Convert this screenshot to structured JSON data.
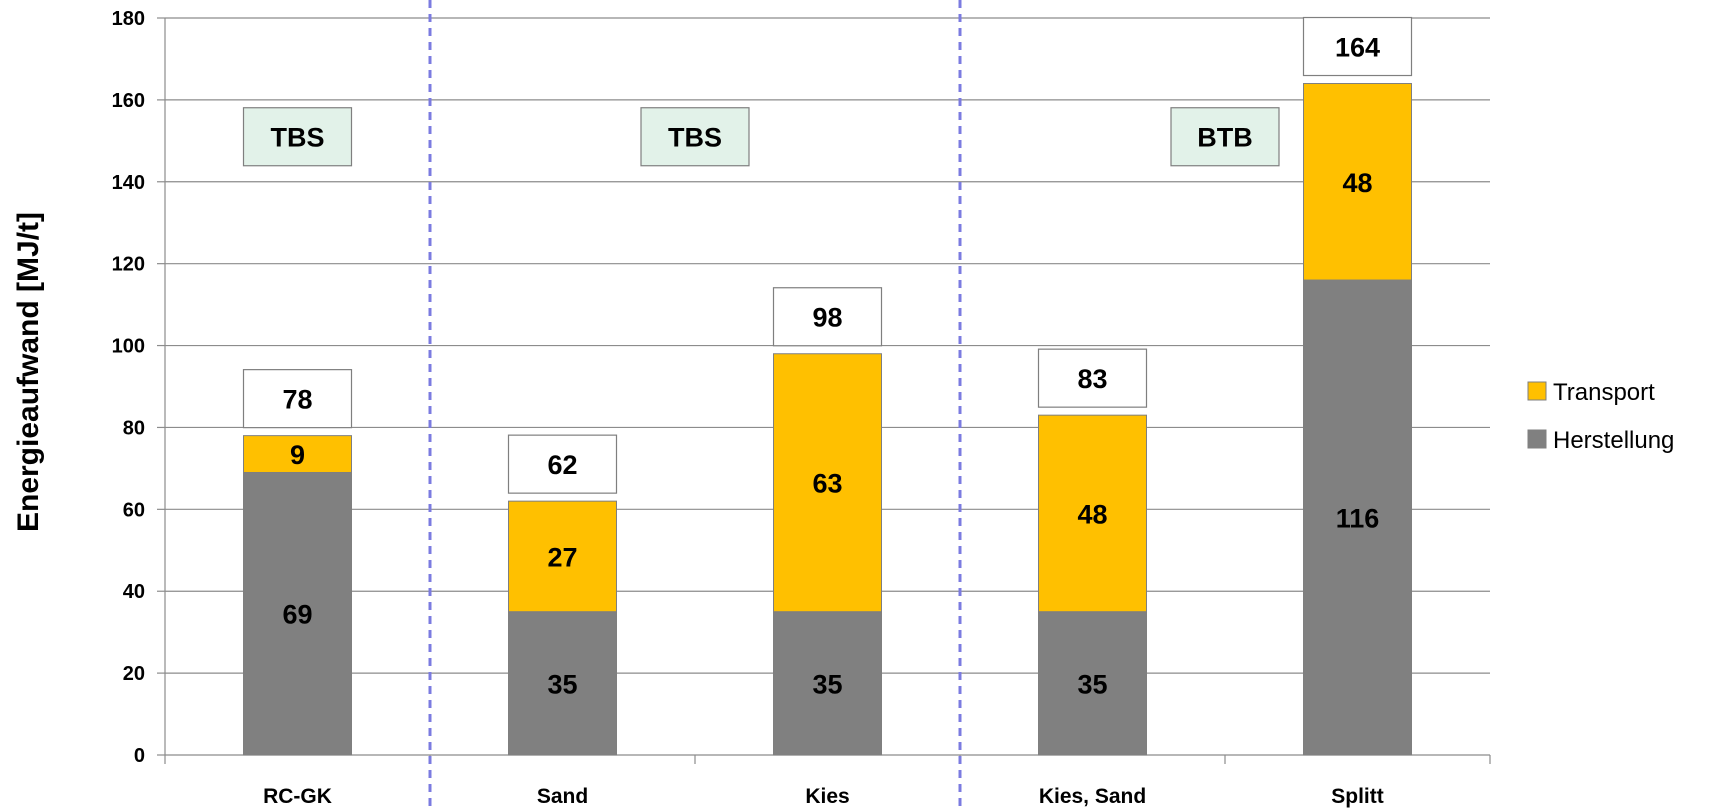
{
  "chart_data": {
    "type": "bar",
    "stacked": true,
    "categories": [
      "RC-GK",
      "Sand",
      "Kies",
      "Kies, Sand",
      "Splitt"
    ],
    "series": [
      {
        "name": "Herstellung",
        "color": "#808080",
        "values": [
          69,
          35,
          35,
          35,
          116
        ]
      },
      {
        "name": "Transport",
        "color": "#FFC000",
        "values": [
          9,
          27,
          63,
          48,
          48
        ]
      }
    ],
    "totals": [
      "78",
      "62",
      "98",
      "83",
      "164"
    ],
    "segment_labels": [
      [
        "69",
        "35",
        "35",
        "35",
        "116"
      ],
      [
        "9",
        "27",
        "63",
        "48",
        "48"
      ]
    ],
    "ylabel": "Energieaufwand [MJ/t]",
    "xlabel": "",
    "ylim": [
      0,
      180
    ],
    "yticks": [
      "0",
      "20",
      "40",
      "60",
      "80",
      "100",
      "120",
      "140",
      "160",
      "180"
    ],
    "grid": true,
    "legend_position": "right",
    "groups": [
      {
        "label": "TBS",
        "categories": [
          "RC-GK"
        ]
      },
      {
        "label": "TBS",
        "categories": [
          "Sand",
          "Kies"
        ]
      },
      {
        "label": "BTB",
        "categories": [
          "Kies, Sand",
          "Splitt"
        ]
      }
    ],
    "group_separator_color": "#7B7BE0",
    "group_label_fill": "#E2F2E9"
  }
}
